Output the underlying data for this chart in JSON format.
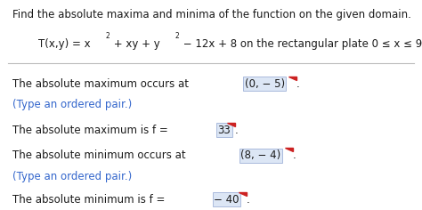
{
  "bg_color": "#ffffff",
  "title_line": "Find the absolute maxima and minima of the function on the given domain.",
  "text_color": "#1a1a1a",
  "orange_color": "#3366cc",
  "box_facecolor": "#dce6f5",
  "box_edgecolor": "#aabbdd",
  "dogear_color": "#cc2222",
  "font_size_title": 8.5,
  "font_size_func": 8.5,
  "font_size_body": 8.5,
  "font_size_orange": 8.5,
  "line1_prefix": "The absolute maximum occurs at ",
  "line1_box": "(0, − 5)",
  "line1_suffix": ".",
  "line2": "(Type an ordered pair.)",
  "line3_prefix": "The absolute maximum is f = ",
  "line3_box": "33",
  "line3_suffix": ".",
  "line4_prefix": "The absolute minimum occurs at ",
  "line4_box": "(8, − 4)",
  "line4_suffix": ".",
  "line5": "(Type an ordered pair.)",
  "line6_prefix": "The absolute minimum is f = ",
  "line6_box": "− 40",
  "line6_suffix": "."
}
